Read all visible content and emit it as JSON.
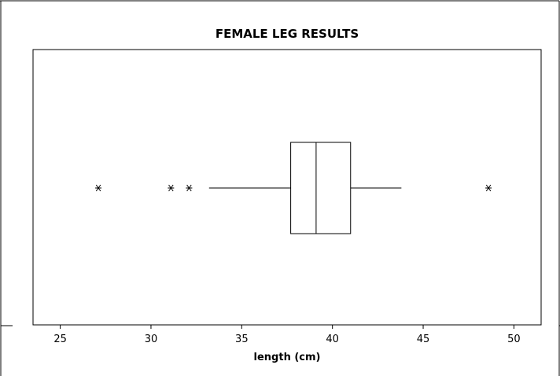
{
  "chart_data": {
    "type": "boxplot",
    "title": "FEMALE LEG RESULTS",
    "xlabel": "length (cm)",
    "xlim": [
      23.5,
      51.5
    ],
    "xticks": [
      25,
      30,
      35,
      40,
      45,
      50
    ],
    "tick_labels": [
      "25",
      "30",
      "35",
      "40",
      "45",
      "50"
    ],
    "box": {
      "whisker_low": 33.2,
      "q1": 37.7,
      "median": 39.1,
      "q3": 41.0,
      "whisker_high": 43.8
    },
    "outliers": [
      27.1,
      31.1,
      32.1,
      48.6
    ],
    "outlier_marker": "asterisk",
    "grid": false,
    "color": "#000000"
  }
}
